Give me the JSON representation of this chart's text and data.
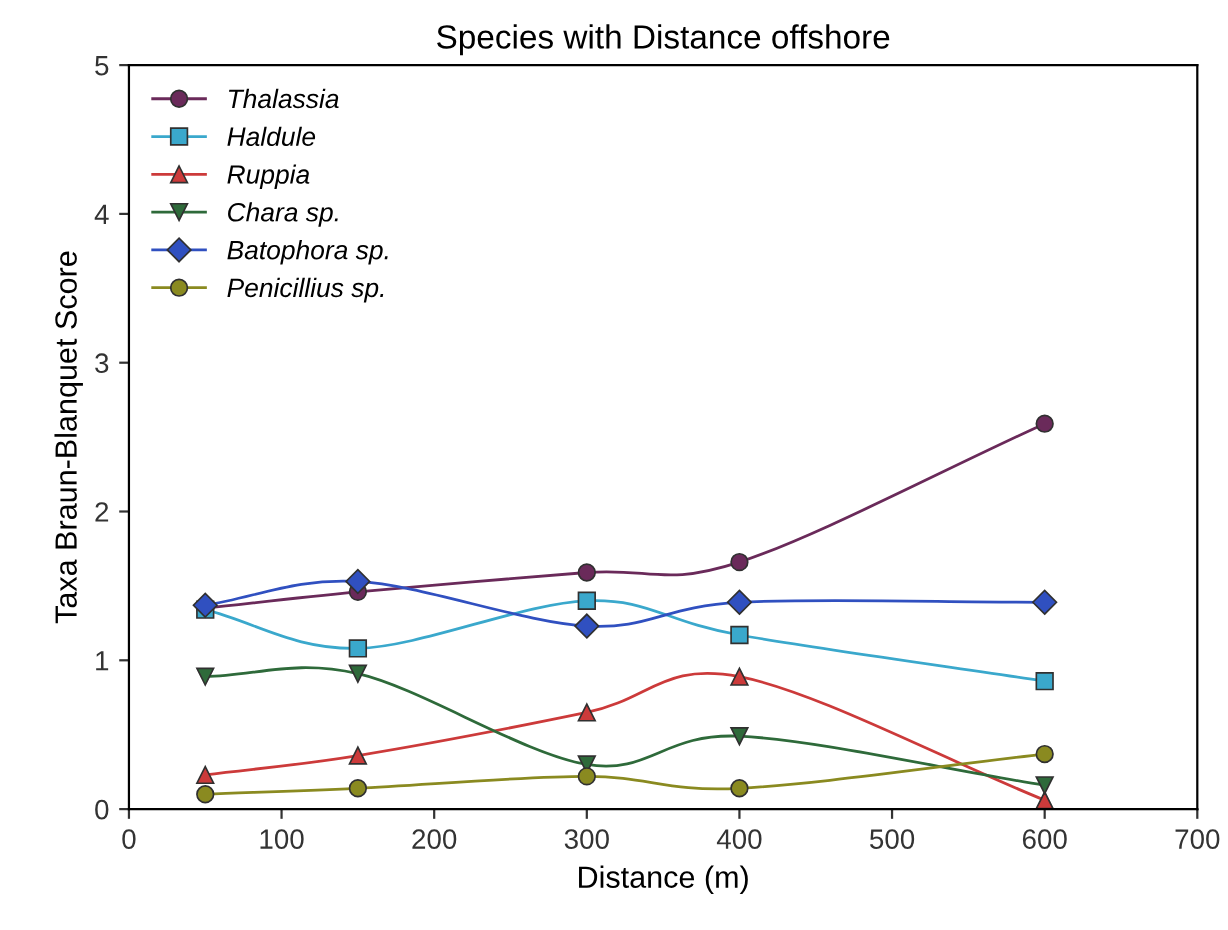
{
  "chart_data": {
    "type": "line",
    "title": "Species with Distance offshore",
    "xlabel": "Distance (m)",
    "ylabel": "Taxa Braun-Blanquet Score",
    "x": [
      50,
      150,
      300,
      400,
      600
    ],
    "series": [
      {
        "name": "Thalassia",
        "color": "#6a2a5a",
        "marker": "circle",
        "values": [
          1.35,
          1.46,
          1.59,
          1.66,
          2.59
        ]
      },
      {
        "name": "Haldule",
        "color": "#3aa8cc",
        "marker": "square",
        "values": [
          1.34,
          1.08,
          1.4,
          1.17,
          0.86
        ]
      },
      {
        "name": "Ruppia",
        "color": "#cc3a3a",
        "marker": "triangle",
        "values": [
          0.23,
          0.36,
          0.65,
          0.89,
          0.06
        ]
      },
      {
        "name": "Chara sp.",
        "color": "#2e6a3a",
        "marker": "triangle_down",
        "values": [
          0.89,
          0.91,
          0.3,
          0.49,
          0.16
        ]
      },
      {
        "name": "Batophora sp.",
        "color": "#3050c0",
        "marker": "diamond",
        "values": [
          1.37,
          1.53,
          1.23,
          1.39,
          1.39
        ]
      },
      {
        "name": "Penicillius sp.",
        "color": "#8a8a20",
        "marker": "circle",
        "values": [
          0.1,
          0.14,
          0.22,
          0.14,
          0.37
        ]
      }
    ],
    "xlim": [
      0,
      700
    ],
    "xticks": [
      0,
      100,
      200,
      300,
      400,
      500,
      600,
      700
    ],
    "ylim": [
      0,
      5
    ],
    "yticks": [
      0,
      1,
      2,
      3,
      4,
      5
    ],
    "grid": false,
    "legend": "top left",
    "line_style": "solid"
  }
}
